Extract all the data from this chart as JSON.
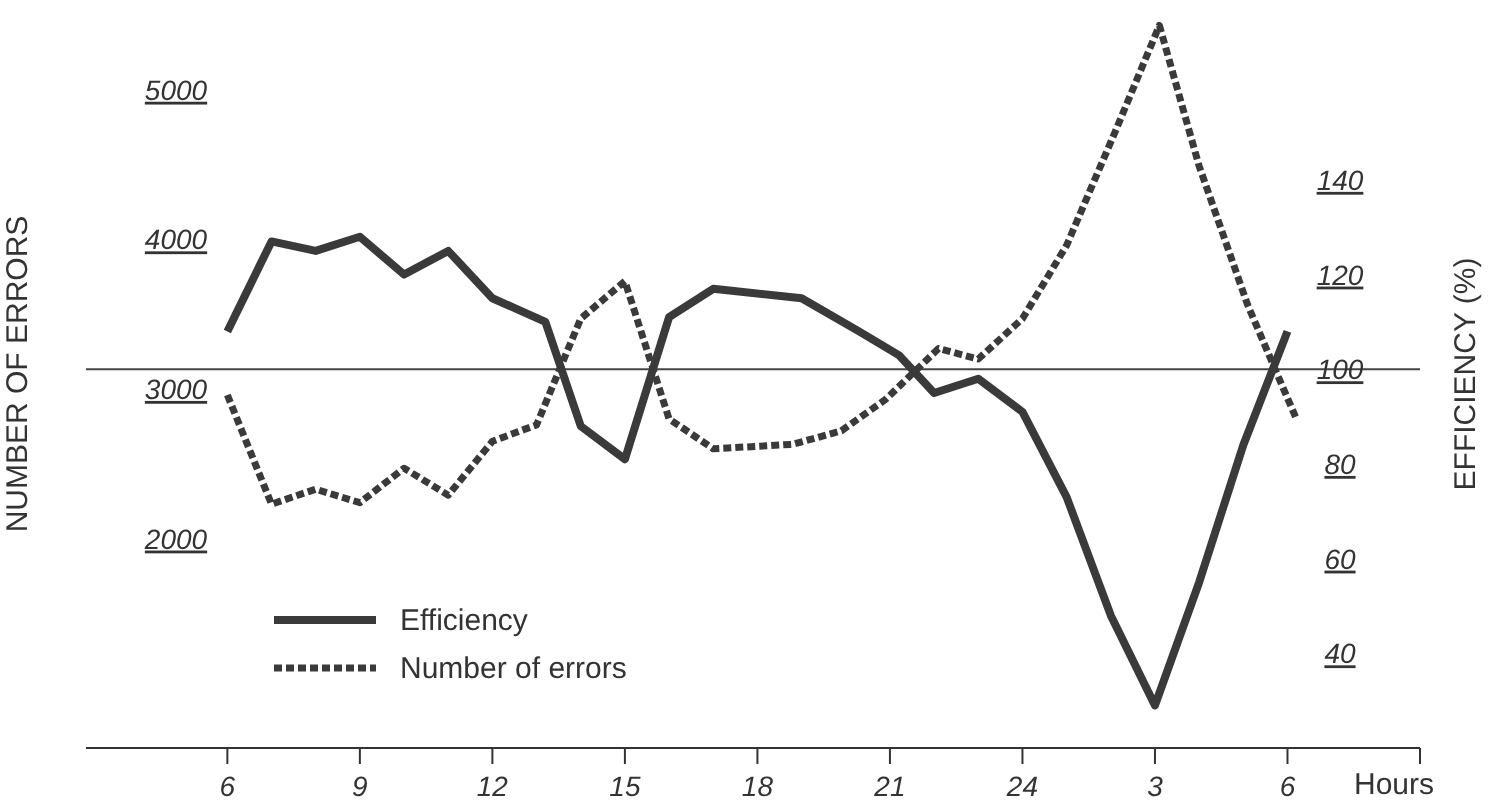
{
  "chart_data": {
    "type": "line",
    "xlabel": "Hours",
    "ylabel": "NUMBER OF ERRORS",
    "y2label": "EFFICIENCY (%)",
    "xlim": [
      "--01-01T02:48",
      "--01-02T09:00"
    ],
    "xticks": [
      {
        "value": "--01-01T06:00",
        "label": "6"
      },
      {
        "value": "--01-01T09:00",
        "label": "9"
      },
      {
        "value": "--01-01T12:00",
        "label": "12"
      },
      {
        "value": "--01-01T15:00",
        "label": "15"
      },
      {
        "value": "--01-01T18:00",
        "label": "18"
      },
      {
        "value": "--01-01T21:00",
        "label": "21"
      },
      {
        "value": "--01-02T00:00",
        "label": "24"
      },
      {
        "value": "--01-02T03:00",
        "label": "3"
      },
      {
        "value": "--01-02T06:00",
        "label": "6"
      },
      {
        "value": "--01-02T09:00",
        "label": null
      }
    ],
    "ylim": [
      600,
      5600
    ],
    "yticks": [
      2000,
      3000,
      4000,
      5000
    ],
    "y2lim": [
      20,
      178
    ],
    "y2ticks": [
      40,
      60,
      80,
      100,
      120,
      140
    ],
    "legend": "bottom left",
    "marker": "none",
    "ref_lines": [
      {
        "axis": "y2",
        "value": 100,
        "color": "#444444"
      }
    ],
    "series": [
      {
        "name": "Efficiency",
        "color": "#3a3a3a",
        "axis": "y2",
        "line_style": "solid",
        "x": [
          "--01-01T06:00",
          "--01-01T07:00",
          "--01-01T08:00",
          "--01-01T09:00",
          "--01-01T10:00",
          "--01-01T11:00",
          "--01-01T12:00",
          "--01-01T13:12",
          "--01-01T14:00",
          "--01-01T15:00",
          "--01-01T16:00",
          "--01-01T17:00",
          "--01-01T19:00",
          "--01-01T20:18",
          "--01-01T21:12",
          "--01-01T22:00",
          "--01-01T23:00",
          "--01-02T00:00",
          "--01-02T01:00",
          "--01-02T02:00",
          "--01-02T03:00",
          "--01-02T04:00",
          "--01-02T05:00",
          "--01-02T06:00"
        ],
        "values": [
          108,
          127,
          125,
          128,
          120,
          125,
          115,
          110,
          88,
          81,
          111,
          117,
          115,
          108,
          103,
          95,
          98,
          91,
          73,
          48,
          29,
          55,
          84,
          108
        ]
      },
      {
        "name": "Number of errors",
        "color": "#3a3a3a",
        "axis": "y",
        "line_style": "dashed",
        "x": [
          "--01-01T06:00",
          "--01-01T07:00",
          "--01-01T08:00",
          "--01-01T09:00",
          "--01-01T10:00",
          "--01-01T11:00",
          "--01-01T12:00",
          "--01-01T13:00",
          "--01-01T14:00",
          "--01-01T15:00",
          "--01-01T16:00",
          "--01-01T17:00",
          "--01-01T18:48",
          "--01-01T19:54",
          "--01-01T20:54",
          "--01-01T22:06",
          "--01-01T23:00",
          "--01-02T00:00",
          "--01-02T01:00",
          "--01-02T02:06",
          "--01-02T03:06",
          "--01-02T04:00",
          "--01-02T05:06",
          "--01-02T06:12"
        ],
        "values": [
          2960,
          2230,
          2330,
          2240,
          2470,
          2290,
          2650,
          2760,
          3470,
          3720,
          2800,
          2600,
          2630,
          2720,
          2930,
          3270,
          3200,
          3470,
          3960,
          4720,
          5430,
          4490,
          3560,
          2800
        ]
      }
    ]
  }
}
